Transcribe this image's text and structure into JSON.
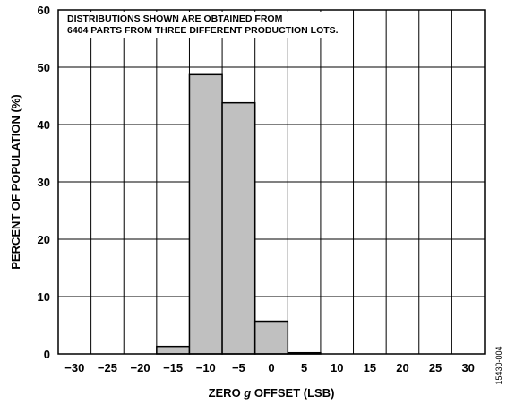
{
  "chart_data": {
    "type": "bar",
    "title": "",
    "xlabel": {
      "before": "ZERO ",
      "italic": "g",
      "after": " OFFSET (LSB)"
    },
    "ylabel": "PERCENT OF POPULATION (%)",
    "annotation": [
      "DISTRIBUTIONS SHOWN ARE OBTAINED FROM",
      "6404 PARTS FROM THREE DIFFERENT PRODUCTION LOTS."
    ],
    "xlim": [
      -32.5,
      32.5
    ],
    "ylim": [
      0,
      60
    ],
    "x_ticks": [
      -30,
      -25,
      -20,
      -15,
      -10,
      -5,
      0,
      5,
      10,
      15,
      20,
      25,
      30
    ],
    "y_ticks": [
      0,
      10,
      20,
      30,
      40,
      50,
      60
    ],
    "grid": true,
    "bins": [
      {
        "start": -17.5,
        "end": -12.5,
        "value": 1.3
      },
      {
        "start": -12.5,
        "end": -7.5,
        "value": 48.7
      },
      {
        "start": -7.5,
        "end": -2.5,
        "value": 43.8
      },
      {
        "start": -2.5,
        "end": 2.5,
        "value": 5.7
      },
      {
        "start": 2.5,
        "end": 7.5,
        "value": 0.2
      }
    ],
    "bar_color": "#c0c0c0",
    "figure_id": "15430-004"
  }
}
